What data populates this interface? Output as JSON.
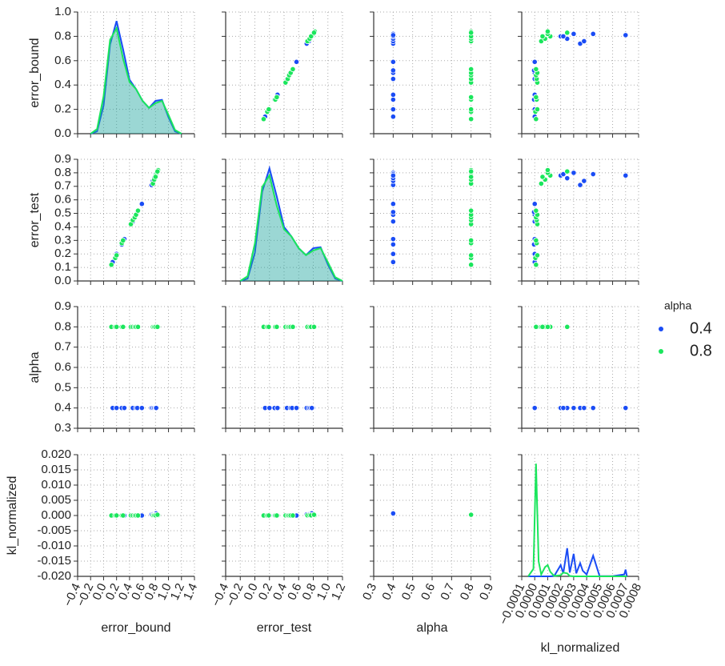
{
  "chart_data": {
    "type": "pairplot",
    "legend_title": "alpha",
    "grid": true,
    "variables": [
      {
        "name": "error_bound",
        "xlim": [
          -0.4,
          1.4
        ],
        "xticks": [
          {
            "value": -0.4,
            "label": "−0.4"
          },
          {
            "value": -0.2,
            "label": "−0.2"
          },
          {
            "value": 0,
            "label": "0.0"
          },
          0.2,
          0.4,
          0.6,
          0.8,
          {
            "value": 1,
            "label": "1.0"
          },
          1.2,
          1.4
        ],
        "ylim": [
          0,
          1
        ],
        "yticks": [
          {
            "value": 0,
            "label": "0.0"
          },
          0.2,
          0.4,
          0.6,
          0.8,
          {
            "value": 1,
            "label": "1.0"
          }
        ],
        "kde_x": [
          -0.2,
          -0.1,
          0,
          0.1,
          0.2,
          0.3,
          0.4,
          0.5,
          0.6,
          0.7,
          0.8,
          0.9,
          1,
          1.1,
          1.2
        ]
      },
      {
        "name": "error_test",
        "xlim": [
          -0.4,
          1.2
        ],
        "xticks": [
          {
            "value": -0.4,
            "label": "−0.4"
          },
          {
            "value": -0.2,
            "label": "−0.2"
          },
          {
            "value": 0,
            "label": "0.0"
          },
          0.2,
          0.4,
          0.6,
          0.8,
          {
            "value": 1,
            "label": "1.0"
          },
          1.2
        ],
        "ylim": [
          0,
          0.9
        ],
        "yticks": [
          {
            "value": 0,
            "label": "0.0"
          },
          0.1,
          0.2,
          0.3,
          0.4,
          0.5,
          0.6,
          0.7,
          0.8,
          0.9
        ],
        "kde_x": [
          -0.2,
          -0.1,
          0,
          0.1,
          0.2,
          0.3,
          0.4,
          0.5,
          0.6,
          0.7,
          0.8,
          0.9,
          1,
          1.1,
          1.2
        ]
      },
      {
        "name": "alpha",
        "xlim": [
          0.3,
          0.9
        ],
        "xticks": [
          0.3,
          0.4,
          0.5,
          0.6,
          0.7,
          0.8,
          0.9
        ],
        "ylim": [
          0.3,
          0.9
        ],
        "yticks": [
          0.3,
          0.4,
          0.5,
          0.6,
          0.7,
          0.8,
          0.9
        ],
        "kde_x": null
      },
      {
        "name": "kl_normalized",
        "xlim": [
          -0.0001,
          0.0008
        ],
        "xticks": [
          {
            "value": -0.0001,
            "label": "−0.0001"
          },
          {
            "value": 0,
            "label": "0.0000"
          },
          0.0001,
          0.0002,
          0.0003,
          0.0004,
          0.0005,
          0.0006,
          0.0007,
          0.0008
        ],
        "ylim": [
          -0.02,
          0.02
        ],
        "yticks": [
          {
            "value": -0.02,
            "label": "-0.020"
          },
          -0.015,
          {
            "value": -0.01,
            "label": "-0.010"
          },
          -0.005,
          {
            "value": 0,
            "label": "0.000"
          },
          0.005,
          {
            "value": 0.01,
            "label": "0.010"
          },
          0.015,
          {
            "value": 0.02,
            "label": "0.020"
          }
        ],
        "kde_x": [
          -5e-05,
          -1e-05,
          1e-05,
          3e-05,
          5e-05,
          8e-05,
          0.0001,
          0.00012,
          0.00015,
          0.0002,
          0.00022,
          0.00025,
          0.00027,
          0.0003,
          0.00032,
          0.00035,
          0.00037,
          0.0004,
          0.00045,
          0.0005,
          0.0006,
          0.00069,
          0.0007,
          0.00071
        ]
      }
    ],
    "series": [
      {
        "name": "0.4",
        "color": "#1a4cf5",
        "values": [
          [
            0.14,
            0.2,
            0.28,
            0.32,
            0.45,
            0.5,
            0.52,
            0.59,
            0.74,
            0.76,
            0.78,
            0.8,
            0.8,
            0.82,
            0.82,
            0.81
          ],
          [
            0.14,
            0.2,
            0.27,
            0.31,
            0.44,
            0.49,
            0.51,
            0.57,
            0.71,
            0.74,
            0.76,
            0.78,
            0.79,
            0.8,
            0.79,
            0.78
          ],
          [
            0.4,
            0.4,
            0.4,
            0.4,
            0.4,
            0.4,
            0.4,
            0.4,
            0.4,
            0.4,
            0.4,
            0.4,
            0.4,
            0.4,
            0.4,
            0.4
          ],
          [
            0,
            0,
            -5e-06,
            0,
            0,
            0,
            -5e-06,
            0,
            0.00035,
            0.00038,
            0.00025,
            0.0002,
            0.00022,
            0.0003,
            0.00045,
            0.0007
          ]
        ],
        "kde": [
          [
            0,
            0.05,
            0.6,
            1.9,
            2.4,
            1.8,
            1.15,
            0.95,
            0.7,
            0.55,
            0.7,
            0.72,
            0.35,
            0.05,
            0
          ],
          [
            0,
            0.05,
            0.6,
            1.9,
            2.4,
            1.8,
            1.15,
            0.95,
            0.7,
            0.55,
            0.7,
            0.72,
            0.35,
            0.05,
            0
          ],
          null,
          [
            0,
            0,
            0,
            0,
            0,
            0,
            0,
            0,
            100,
            3000,
            800,
            7500,
            1000,
            6000,
            800,
            3500,
            1500,
            500,
            5500,
            50,
            50,
            500,
            1800,
            50
          ]
        ]
      },
      {
        "name": "0.8",
        "color": "#1ae65c",
        "values": [
          [
            0.12,
            0.18,
            0.2,
            0.28,
            0.3,
            0.42,
            0.45,
            0.48,
            0.5,
            0.53,
            0.76,
            0.78,
            0.8,
            0.82,
            0.84,
            0.8,
            0.83
          ],
          [
            0.12,
            0.17,
            0.19,
            0.28,
            0.3,
            0.42,
            0.45,
            0.47,
            0.49,
            0.52,
            0.72,
            0.75,
            0.78,
            0.8,
            0.82,
            0.77,
            0.81
          ],
          [
            0.8,
            0.8,
            0.8,
            0.8,
            0.8,
            0.8,
            0.8,
            0.8,
            0.8,
            0.8,
            0.8,
            0.8,
            0.8,
            0.8,
            0.8,
            0.8,
            0.8
          ],
          [
            1e-05,
            5e-06,
            2e-05,
            1.5e-05,
            1e-05,
            2e-05,
            1.5e-05,
            1e-05,
            2e-05,
            1e-05,
            5e-05,
            8e-05,
            0.00012,
            0.0001,
            0.0001,
            6e-05,
            0.00025
          ]
        ],
        "kde": [
          [
            0,
            0.1,
            0.8,
            2.0,
            2.25,
            1.6,
            1.1,
            0.95,
            0.7,
            0.55,
            0.65,
            0.7,
            0.4,
            0.08,
            0
          ],
          [
            0,
            0.1,
            0.8,
            2.0,
            2.25,
            1.6,
            1.1,
            0.95,
            0.7,
            0.55,
            0.65,
            0.7,
            0.4,
            0.08,
            0
          ],
          null,
          [
            0,
            2000,
            30000,
            4000,
            500,
            2500,
            3000,
            1200,
            100,
            300,
            1000,
            800,
            100,
            0,
            0,
            0,
            0,
            0,
            0,
            0,
            0,
            0,
            0,
            0
          ]
        ]
      }
    ]
  }
}
